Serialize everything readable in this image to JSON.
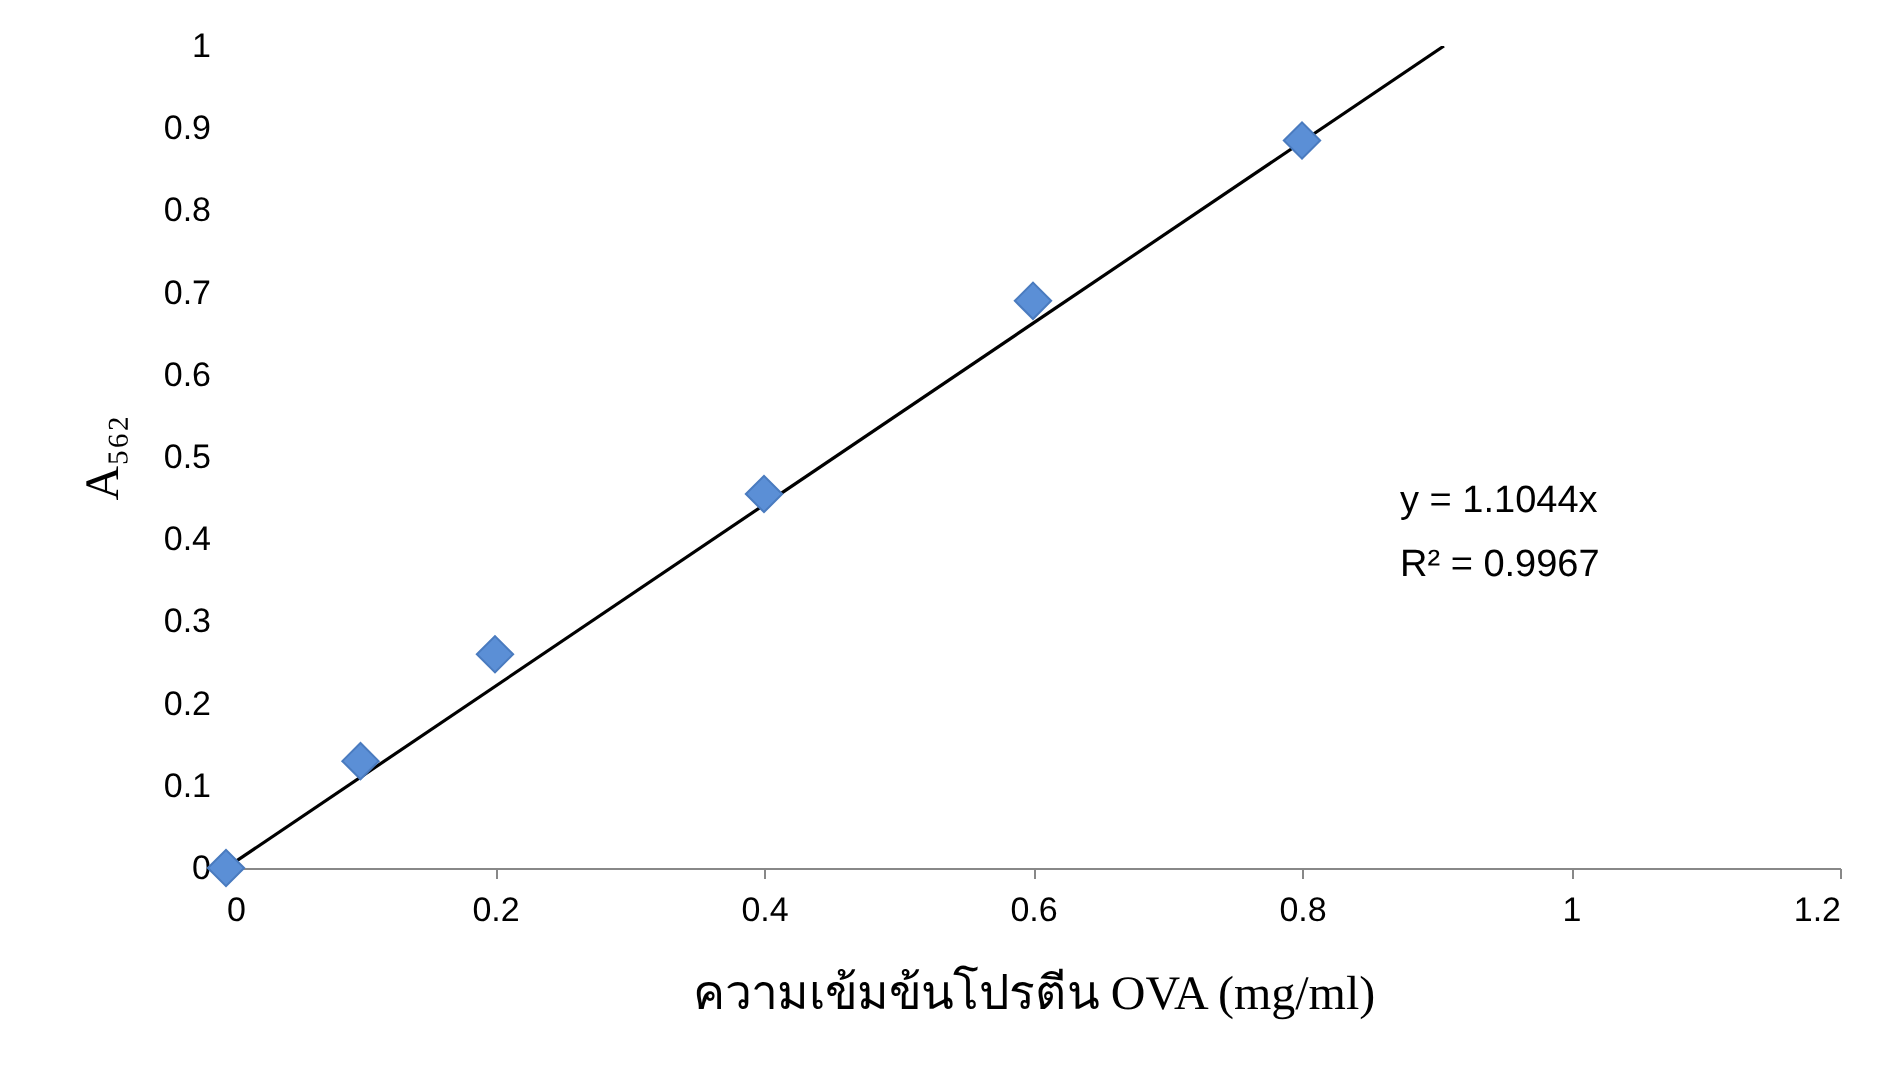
{
  "chart_data": {
    "type": "scatter",
    "xlabel": "ความเข้มข้นโปรตีน OVA (mg/ml)",
    "ylabel": "A₅₆₂",
    "series": [
      {
        "color": "#5b8fd6",
        "marker": "diamond",
        "x": [
          0,
          0.1,
          0.2,
          0.4,
          0.6,
          0.8
        ],
        "values": [
          0,
          0.13,
          0.26,
          0.455,
          0.69,
          0.885
        ]
      },
      {
        "type": "line",
        "color": "#000000",
        "marker": "none",
        "x": [
          0,
          0.9055
        ],
        "values": [
          0,
          1
        ]
      }
    ],
    "grid": false,
    "legend": false,
    "xlim": [
      0,
      1.2
    ],
    "xticks": [
      0,
      0.2,
      0.4,
      0.6,
      0.8,
      1,
      1.2
    ],
    "ylim": [
      0,
      1
    ],
    "yticks": [
      0,
      0.1,
      0.2,
      0.3,
      0.4,
      0.5,
      0.6,
      0.7,
      0.8,
      0.9,
      1
    ],
    "annotations": [
      "y = 1.1044x",
      "R² = 0.9967"
    ]
  }
}
